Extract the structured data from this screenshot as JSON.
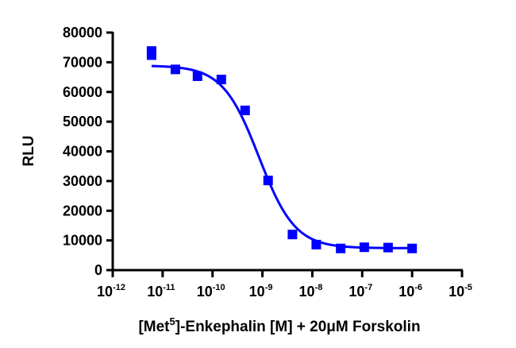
{
  "chart_data": {
    "type": "scatter",
    "xlabel": {
      "prefix": "[Met",
      "superscript": "5",
      "suffix": "]-Enkephalin [M] + 20μM Forskolin"
    },
    "ylabel": "RLU",
    "x_scale": "log",
    "xlim": [
      1e-12,
      1e-05
    ],
    "ylim": [
      0,
      80000
    ],
    "x_ticks": [
      {
        "base": "10",
        "exp": "-12",
        "value": 1e-12
      },
      {
        "base": "10",
        "exp": "-11",
        "value": 1e-11
      },
      {
        "base": "10",
        "exp": "-10",
        "value": 1e-10
      },
      {
        "base": "10",
        "exp": "-9",
        "value": 1e-09
      },
      {
        "base": "10",
        "exp": "-8",
        "value": 1e-08
      },
      {
        "base": "10",
        "exp": "-7",
        "value": 1e-07
      },
      {
        "base": "10",
        "exp": "-6",
        "value": 1e-06
      },
      {
        "base": "10",
        "exp": "-5",
        "value": 1e-05
      }
    ],
    "y_ticks": [
      "0",
      "10000",
      "20000",
      "30000",
      "40000",
      "50000",
      "60000",
      "70000",
      "80000"
    ],
    "grid": false,
    "color": "#0000ff",
    "points": [
      {
        "x": 6e-12,
        "y": 73800
      },
      {
        "x": 6e-12,
        "y": 72400
      },
      {
        "x": 1.8e-11,
        "y": 67600
      },
      {
        "x": 5e-11,
        "y": 65300
      },
      {
        "x": 1.5e-10,
        "y": 64200
      },
      {
        "x": 4.5e-10,
        "y": 53800
      },
      {
        "x": 1.3e-09,
        "y": 30200
      },
      {
        "x": 4e-09,
        "y": 12000
      },
      {
        "x": 1.2e-08,
        "y": 8600
      },
      {
        "x": 3.7e-08,
        "y": 7300
      },
      {
        "x": 1.1e-07,
        "y": 7700
      },
      {
        "x": 3.3e-07,
        "y": 7600
      },
      {
        "x": 1e-06,
        "y": 7300
      }
    ],
    "fit": {
      "type": "sigmoidal dose-response",
      "top": 68900,
      "bottom": 7400,
      "ec50": 8.5e-10,
      "hill_slope": 1.2,
      "x_range": [
        6e-12,
        1e-06
      ]
    }
  }
}
